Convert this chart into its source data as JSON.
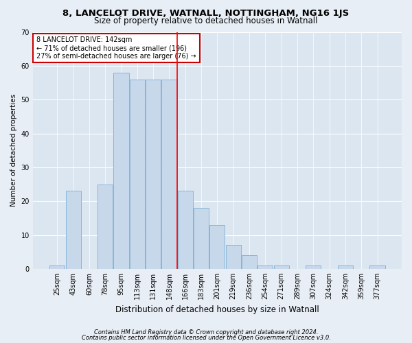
{
  "title": "8, LANCELOT DRIVE, WATNALL, NOTTINGHAM, NG16 1JS",
  "subtitle": "Size of property relative to detached houses in Watnall",
  "xlabel": "Distribution of detached houses by size in Watnall",
  "ylabel": "Number of detached properties",
  "categories": [
    "25sqm",
    "43sqm",
    "60sqm",
    "78sqm",
    "95sqm",
    "113sqm",
    "131sqm",
    "148sqm",
    "166sqm",
    "183sqm",
    "201sqm",
    "219sqm",
    "236sqm",
    "254sqm",
    "271sqm",
    "289sqm",
    "307sqm",
    "324sqm",
    "342sqm",
    "359sqm",
    "377sqm"
  ],
  "values": [
    1,
    23,
    0,
    25,
    58,
    56,
    56,
    56,
    23,
    18,
    13,
    7,
    4,
    1,
    1,
    0,
    1,
    0,
    1,
    0,
    1
  ],
  "bar_color": "#c8d8eb",
  "bar_edge_color": "#7bafd4",
  "red_line_x": 7.5,
  "annotation_text": "8 LANCELOT DRIVE: 142sqm\n← 71% of detached houses are smaller (196)\n27% of semi-detached houses are larger (76) →",
  "annotation_box_color": "#ffffff",
  "annotation_box_edge": "#cc0000",
  "background_color": "#e8eef5",
  "plot_bg_color": "#dce6f0",
  "footer1": "Contains HM Land Registry data © Crown copyright and database right 2024.",
  "footer2": "Contains public sector information licensed under the Open Government Licence v3.0.",
  "ylim": [
    0,
    70
  ],
  "yticks": [
    0,
    10,
    20,
    30,
    40,
    50,
    60,
    70
  ],
  "title_fontsize": 9.5,
  "subtitle_fontsize": 8.5,
  "xlabel_fontsize": 8.5,
  "ylabel_fontsize": 7.5,
  "tick_fontsize": 7,
  "annot_fontsize": 7,
  "footer_fontsize": 6
}
